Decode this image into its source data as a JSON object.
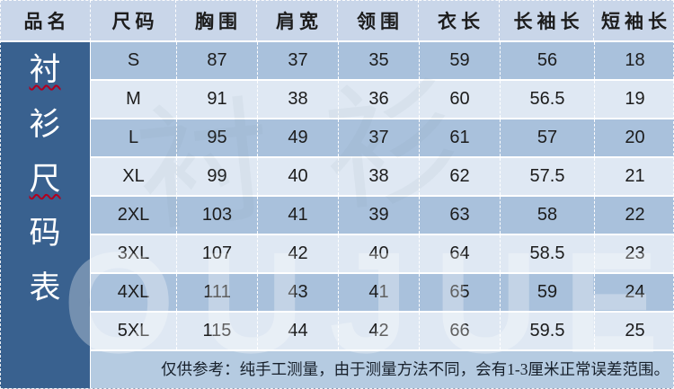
{
  "colors": {
    "header_bg": "#c9d6e9",
    "band_dark": "#a9c1dc",
    "band_light": "#dfe8f3",
    "note_bg": "#b5cbe1",
    "side_bg": "#39618f",
    "wavy_red": "#b00020"
  },
  "watermark": "OUJUE",
  "watermark_faint": "衬衫",
  "chart_data": {
    "type": "table",
    "title": "衬衫尺码表",
    "columns": [
      "品名",
      "尺码",
      "胸围",
      "肩宽",
      "领围",
      "衣长",
      "长袖长",
      "短袖长"
    ],
    "vertical_title_chars": [
      "衬",
      "衫",
      "尺",
      "码",
      "表"
    ],
    "underlined_char_indexes": [
      0,
      2
    ],
    "rows": [
      {
        "size": "S",
        "values": [
          "87",
          "37",
          "35",
          "59",
          "56",
          "18"
        ]
      },
      {
        "size": "M",
        "values": [
          "91",
          "38",
          "36",
          "60",
          "56.5",
          "19"
        ]
      },
      {
        "size": "L",
        "values": [
          "95",
          "49",
          "37",
          "61",
          "57",
          "20"
        ]
      },
      {
        "size": "XL",
        "values": [
          "99",
          "40",
          "38",
          "62",
          "57.5",
          "21"
        ]
      },
      {
        "size": "2XL",
        "values": [
          "103",
          "41",
          "39",
          "63",
          "58",
          "22"
        ]
      },
      {
        "size": "3XL",
        "values": [
          "107",
          "42",
          "40",
          "64",
          "58.5",
          "23"
        ]
      },
      {
        "size": "4XL",
        "values": [
          "111",
          "43",
          "41",
          "65",
          "59",
          "24"
        ]
      },
      {
        "size": "5XL",
        "values": [
          "115",
          "44",
          "42",
          "66",
          "59.5",
          "25"
        ]
      }
    ],
    "note": "仅供参考：纯手工测量，由于测量方法不同，会有1-3厘米正常误差范围。"
  }
}
